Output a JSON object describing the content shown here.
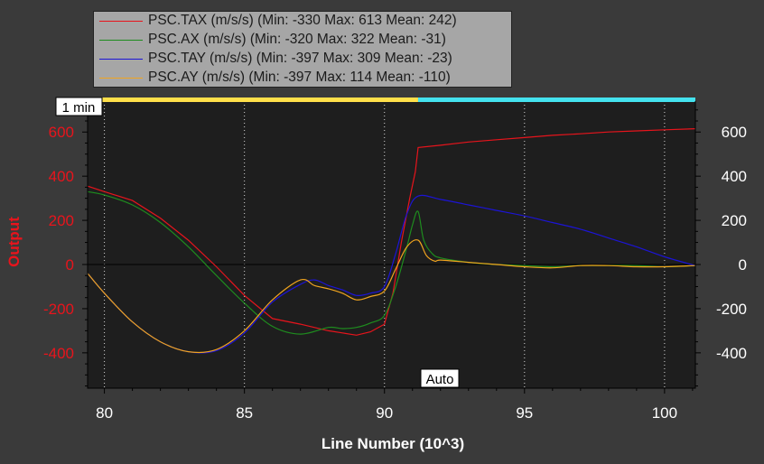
{
  "chart_data": {
    "type": "line",
    "xlabel": "Line Number (10^3)",
    "ylabel": "Output",
    "xlim": [
      79.4,
      101.1
    ],
    "ylim": [
      -560,
      740
    ],
    "xticks": [
      80,
      85,
      90,
      95,
      100
    ],
    "yticks": [
      -400,
      -200,
      0,
      200,
      400,
      600
    ],
    "yticks_right": [
      -400,
      -200,
      0,
      200,
      400,
      600
    ],
    "grid": "vertical-dotted",
    "legend_position": "top-left",
    "time_bar": {
      "label": "1 min",
      "segments": [
        {
          "from": 79.4,
          "to": 91.2,
          "color": "#ffe04a"
        },
        {
          "from": 91.2,
          "to": 101.1,
          "color": "#44e2ee"
        }
      ]
    },
    "auto_label": "Auto",
    "series": [
      {
        "name": "PSC.TAX (m/s/s) (Min: -330 Max: 613 Mean: 242)",
        "color": "#e8141c",
        "x": [
          79.4,
          80,
          81,
          82,
          83,
          84,
          85,
          86,
          87,
          88,
          88.5,
          89,
          89.5,
          90,
          90.3,
          90.6,
          90.9,
          91.1,
          91.2,
          92,
          93,
          94,
          95,
          96,
          97,
          98,
          99,
          100,
          101.1
        ],
        "y": [
          355,
          330,
          290,
          210,
          110,
          -10,
          -140,
          -245,
          -270,
          -300,
          -310,
          -320,
          -305,
          -270,
          -130,
          100,
          300,
          420,
          530,
          540,
          555,
          565,
          575,
          585,
          592,
          600,
          605,
          610,
          615
        ]
      },
      {
        "name": "PSC.AX (m/s/s) (Min: -320 Max: 322 Mean: -31)",
        "color": "#1e8c1e",
        "x": [
          79.4,
          80,
          81,
          82,
          83,
          84,
          85,
          86,
          87,
          88,
          88.5,
          89,
          89.5,
          90,
          90.4,
          90.8,
          91.0,
          91.2,
          91.4,
          91.7,
          92,
          93,
          94,
          95,
          96,
          97,
          98,
          99,
          100,
          101.1
        ],
        "y": [
          330,
          315,
          270,
          190,
          80,
          -50,
          -175,
          -280,
          -315,
          -285,
          -290,
          -285,
          -265,
          -230,
          -100,
          80,
          180,
          240,
          110,
          50,
          30,
          10,
          0,
          -5,
          -10,
          -5,
          -5,
          -5,
          -10,
          -5
        ],
        "smooth": true
      },
      {
        "name": "PSC.TAY (m/s/s) (Min: -397 Max: 309 Mean: -23)",
        "color": "#1c14d6",
        "x": [
          79.4,
          80,
          81,
          82,
          83,
          84,
          85,
          86,
          87,
          87.5,
          88,
          88.5,
          89,
          89.5,
          90,
          90.4,
          90.8,
          91.2,
          92,
          93,
          94,
          95,
          96,
          97,
          98,
          99,
          100,
          101.1
        ],
        "y": [
          -40,
          -130,
          -260,
          -350,
          -395,
          -390,
          -310,
          -170,
          -90,
          -70,
          -95,
          -115,
          -140,
          -130,
          -100,
          50,
          230,
          310,
          295,
          270,
          245,
          220,
          190,
          160,
          120,
          80,
          35,
          -5
        ],
        "smooth": true
      },
      {
        "name": "PSC.AY (m/s/s) (Min: -397 Max: 114 Mean: -110)",
        "color": "#f0a41e",
        "x": [
          79.4,
          80,
          81,
          82,
          83,
          84,
          85,
          86,
          87,
          87.5,
          88,
          88.5,
          89,
          89.5,
          90,
          90.4,
          90.8,
          91.2,
          91.5,
          91.8,
          92,
          93,
          94,
          95,
          96,
          97,
          98,
          99,
          100,
          101.1
        ],
        "y": [
          -40,
          -130,
          -260,
          -350,
          -395,
          -385,
          -300,
          -160,
          -70,
          -95,
          -110,
          -130,
          -160,
          -145,
          -120,
          -20,
          80,
          110,
          40,
          15,
          20,
          10,
          0,
          -10,
          -15,
          -5,
          -5,
          -10,
          -10,
          -5
        ],
        "smooth": true
      }
    ]
  }
}
